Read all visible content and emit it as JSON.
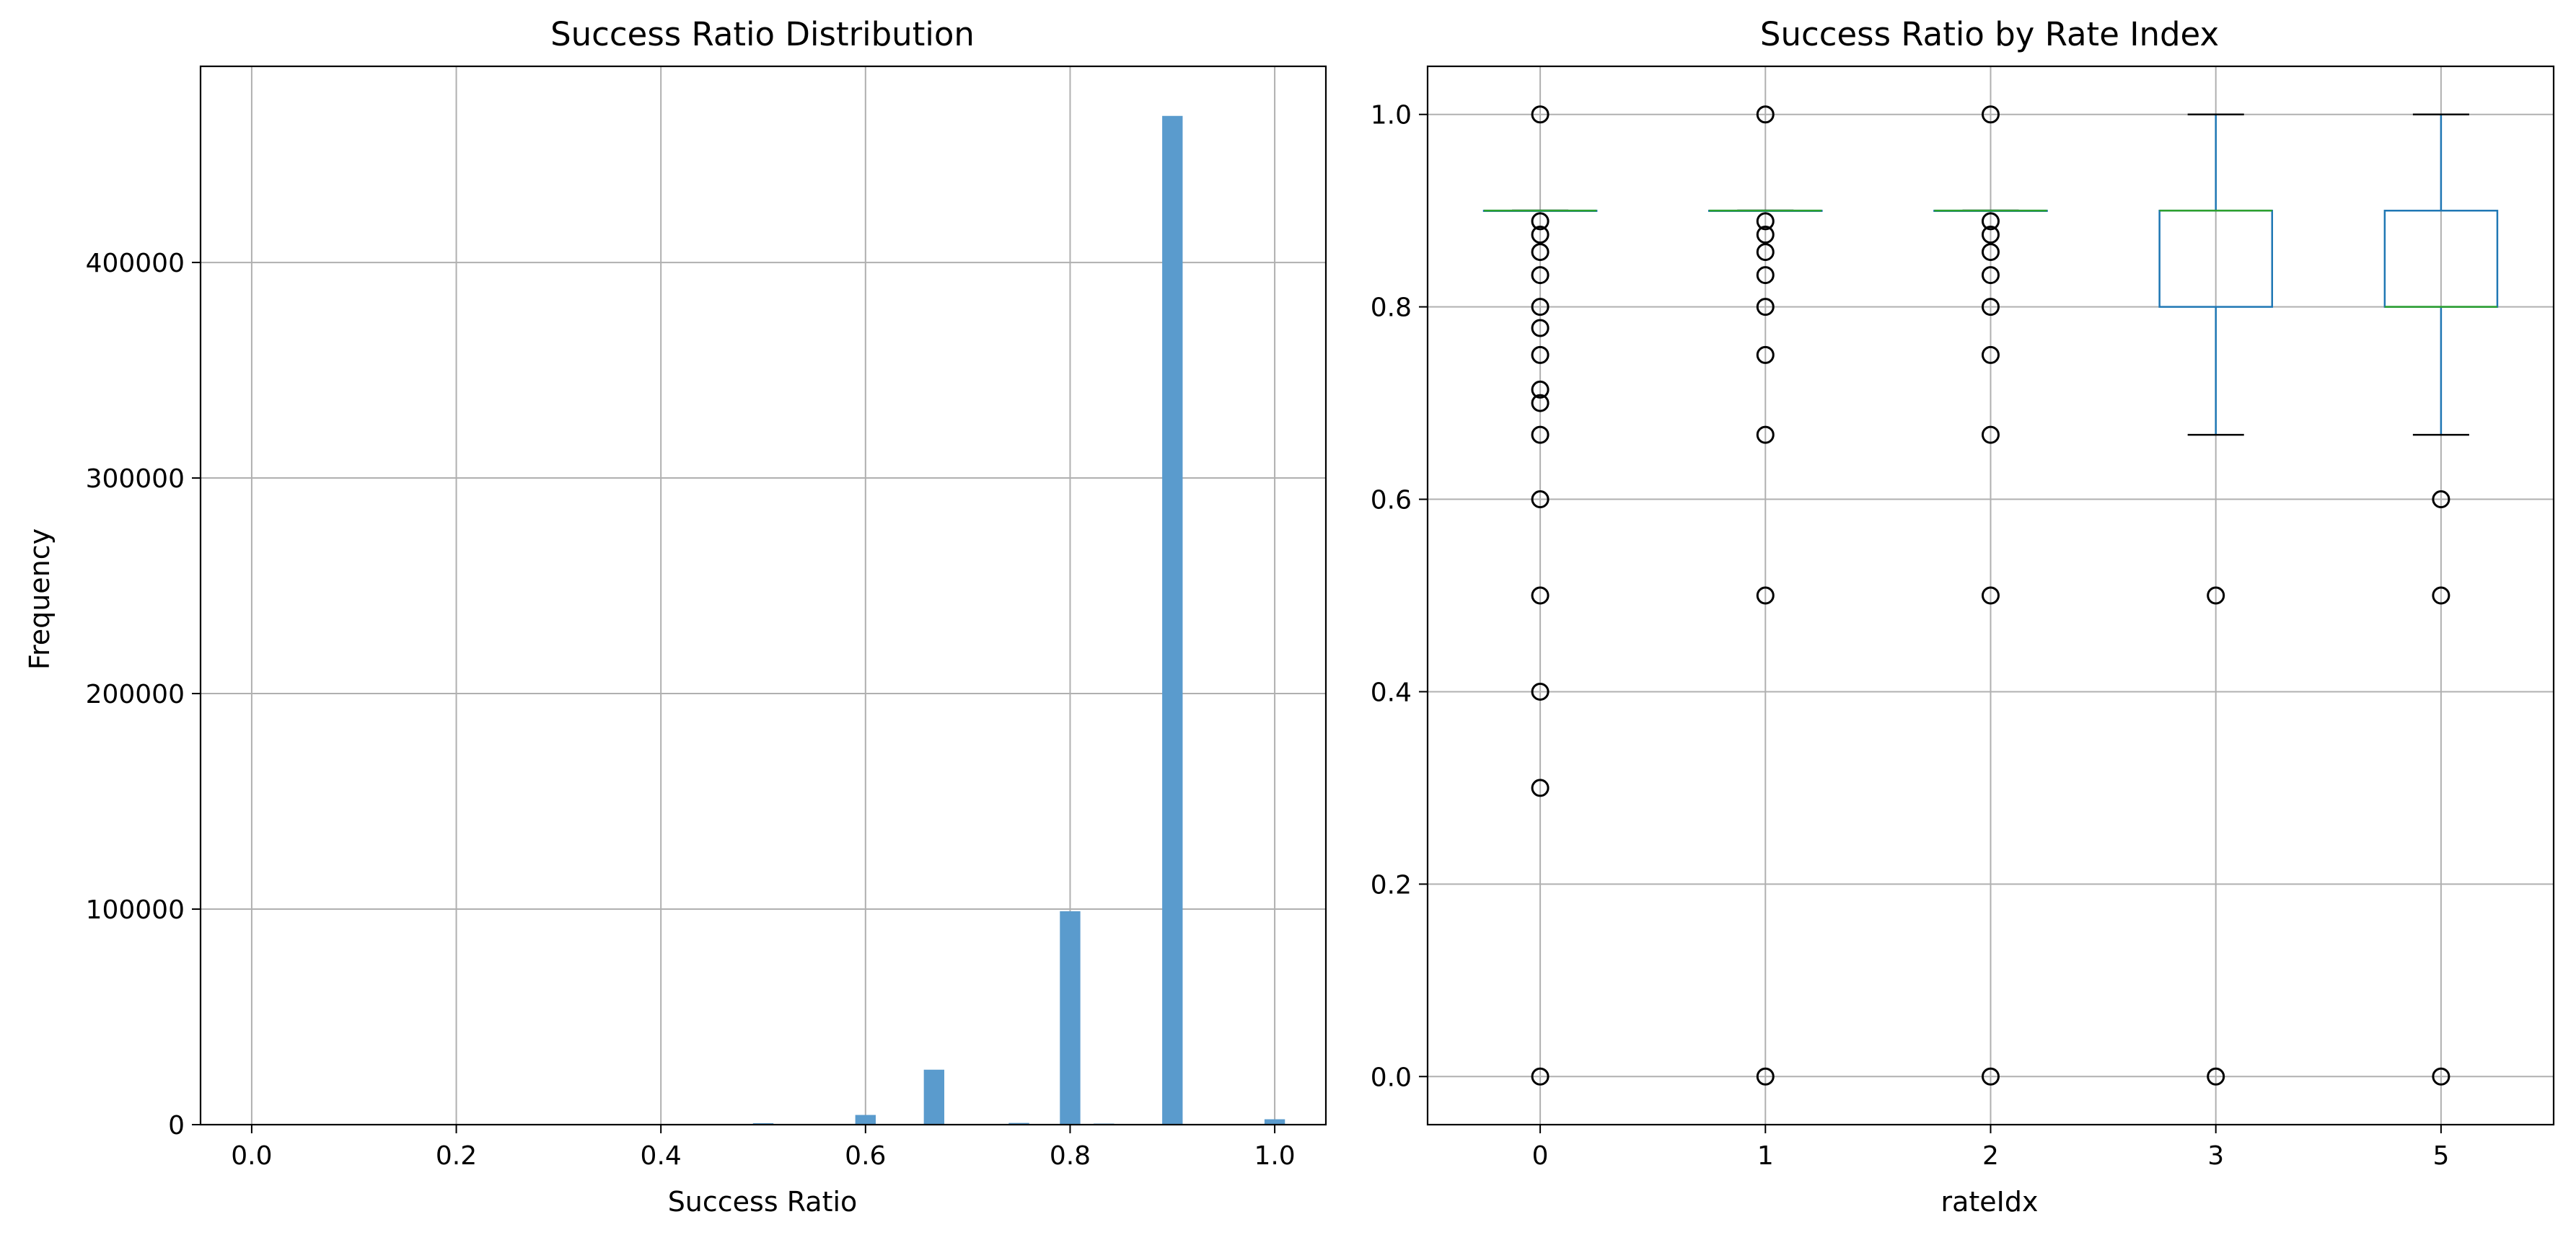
{
  "chart_data": [
    {
      "type": "bar",
      "title": "Success Ratio Distribution",
      "xlabel": "Success Ratio",
      "ylabel": "Frequency",
      "xlim": [
        -0.05,
        1.05
      ],
      "ylim": [
        0,
        491000
      ],
      "x_ticks": [
        0.0,
        0.2,
        0.4,
        0.6,
        0.8,
        1.0
      ],
      "x_tick_labels": [
        "0.0",
        "0.2",
        "0.4",
        "0.6",
        "0.8",
        "1.0"
      ],
      "y_ticks": [
        0,
        100000,
        200000,
        300000,
        400000
      ],
      "y_tick_labels": [
        "0",
        "100000",
        "200000",
        "300000",
        "400000"
      ],
      "grid": true,
      "color": "#5a9bcd",
      "bin_width": 0.02,
      "bins": [
        {
          "x": 0.0,
          "value": 300
        },
        {
          "x": 0.3,
          "value": 100
        },
        {
          "x": 0.4,
          "value": 200
        },
        {
          "x": 0.5,
          "value": 700
        },
        {
          "x": 0.6,
          "value": 4500
        },
        {
          "x": 0.667,
          "value": 25500
        },
        {
          "x": 0.7,
          "value": 300
        },
        {
          "x": 0.75,
          "value": 800
        },
        {
          "x": 0.8,
          "value": 99000
        },
        {
          "x": 0.833,
          "value": 500
        },
        {
          "x": 0.9,
          "value": 468000
        },
        {
          "x": 1.0,
          "value": 2500
        }
      ]
    },
    {
      "type": "box",
      "title": "Success Ratio by Rate Index",
      "xlabel": "rateIdx",
      "ylabel": "",
      "ylim": [
        -0.05,
        1.05
      ],
      "y_ticks": [
        0.0,
        0.2,
        0.4,
        0.6,
        0.8,
        1.0
      ],
      "y_tick_labels": [
        "0.0",
        "0.2",
        "0.4",
        "0.6",
        "0.8",
        "1.0"
      ],
      "categories": [
        "0",
        "1",
        "2",
        "3",
        "5"
      ],
      "grid": true,
      "box_color": "#1f77b4",
      "median_color": "#2ca02c",
      "whisker_color": "#1f77b4",
      "cap_color": "#000000",
      "flier_color": "#000000",
      "boxes": [
        {
          "category": "0",
          "q1": 0.9,
          "median": 0.9,
          "q3": 0.9,
          "whislo": 0.9,
          "whishi": 0.9,
          "fliers": [
            1.0,
            0.889,
            0.875,
            0.857,
            0.833,
            0.8,
            0.778,
            0.75,
            0.714,
            0.7,
            0.667,
            0.6,
            0.5,
            0.4,
            0.3,
            0.0
          ]
        },
        {
          "category": "1",
          "q1": 0.9,
          "median": 0.9,
          "q3": 0.9,
          "whislo": 0.9,
          "whishi": 0.9,
          "fliers": [
            1.0,
            0.889,
            0.875,
            0.857,
            0.833,
            0.8,
            0.75,
            0.667,
            0.5,
            0.0
          ]
        },
        {
          "category": "2",
          "q1": 0.9,
          "median": 0.9,
          "q3": 0.9,
          "whislo": 0.9,
          "whishi": 0.9,
          "fliers": [
            1.0,
            0.889,
            0.875,
            0.857,
            0.833,
            0.8,
            0.75,
            0.667,
            0.5,
            0.0
          ]
        },
        {
          "category": "3",
          "q1": 0.8,
          "median": 0.9,
          "q3": 0.9,
          "whislo": 0.667,
          "whishi": 1.0,
          "fliers": [
            0.5,
            0.0
          ]
        },
        {
          "category": "5",
          "q1": 0.8,
          "median": 0.8,
          "q3": 0.9,
          "whislo": 0.667,
          "whishi": 1.0,
          "fliers": [
            0.6,
            0.5,
            0.0
          ]
        }
      ]
    }
  ]
}
